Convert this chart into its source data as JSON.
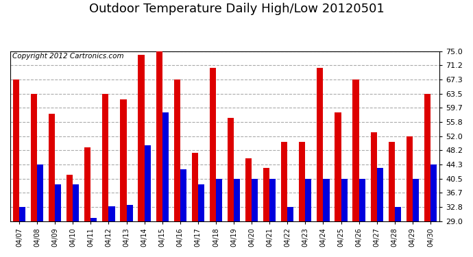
{
  "title": "Outdoor Temperature Daily High/Low 20120501",
  "copyright_text": "Copyright 2012 Cartronics.com",
  "dates": [
    "04/07",
    "04/08",
    "04/09",
    "04/10",
    "04/11",
    "04/12",
    "04/13",
    "04/14",
    "04/15",
    "04/16",
    "04/17",
    "04/18",
    "04/19",
    "04/20",
    "04/21",
    "04/22",
    "04/23",
    "04/24",
    "04/25",
    "04/26",
    "04/27",
    "04/28",
    "04/29",
    "04/30"
  ],
  "highs": [
    67.3,
    63.5,
    58.0,
    41.5,
    49.0,
    63.5,
    62.0,
    74.0,
    75.0,
    67.3,
    47.5,
    70.5,
    57.0,
    46.0,
    43.5,
    50.5,
    50.5,
    70.5,
    58.5,
    67.3,
    53.0,
    50.5,
    52.0,
    63.5
  ],
  "lows": [
    32.8,
    44.3,
    39.0,
    39.0,
    30.0,
    33.0,
    33.5,
    49.5,
    58.5,
    43.0,
    39.0,
    40.5,
    40.5,
    40.5,
    40.5,
    32.8,
    40.5,
    40.5,
    40.5,
    40.5,
    43.5,
    32.8,
    40.5,
    44.3
  ],
  "high_color": "#dd0000",
  "low_color": "#0000dd",
  "background_color": "#ffffff",
  "plot_background": "#ffffff",
  "grid_color": "#aaaaaa",
  "yticks": [
    29.0,
    32.8,
    36.7,
    40.5,
    44.3,
    48.2,
    52.0,
    55.8,
    59.7,
    63.5,
    67.3,
    71.2,
    75.0
  ],
  "ymin": 29.0,
  "ymax": 75.0,
  "title_fontsize": 13,
  "copyright_fontsize": 7.5
}
